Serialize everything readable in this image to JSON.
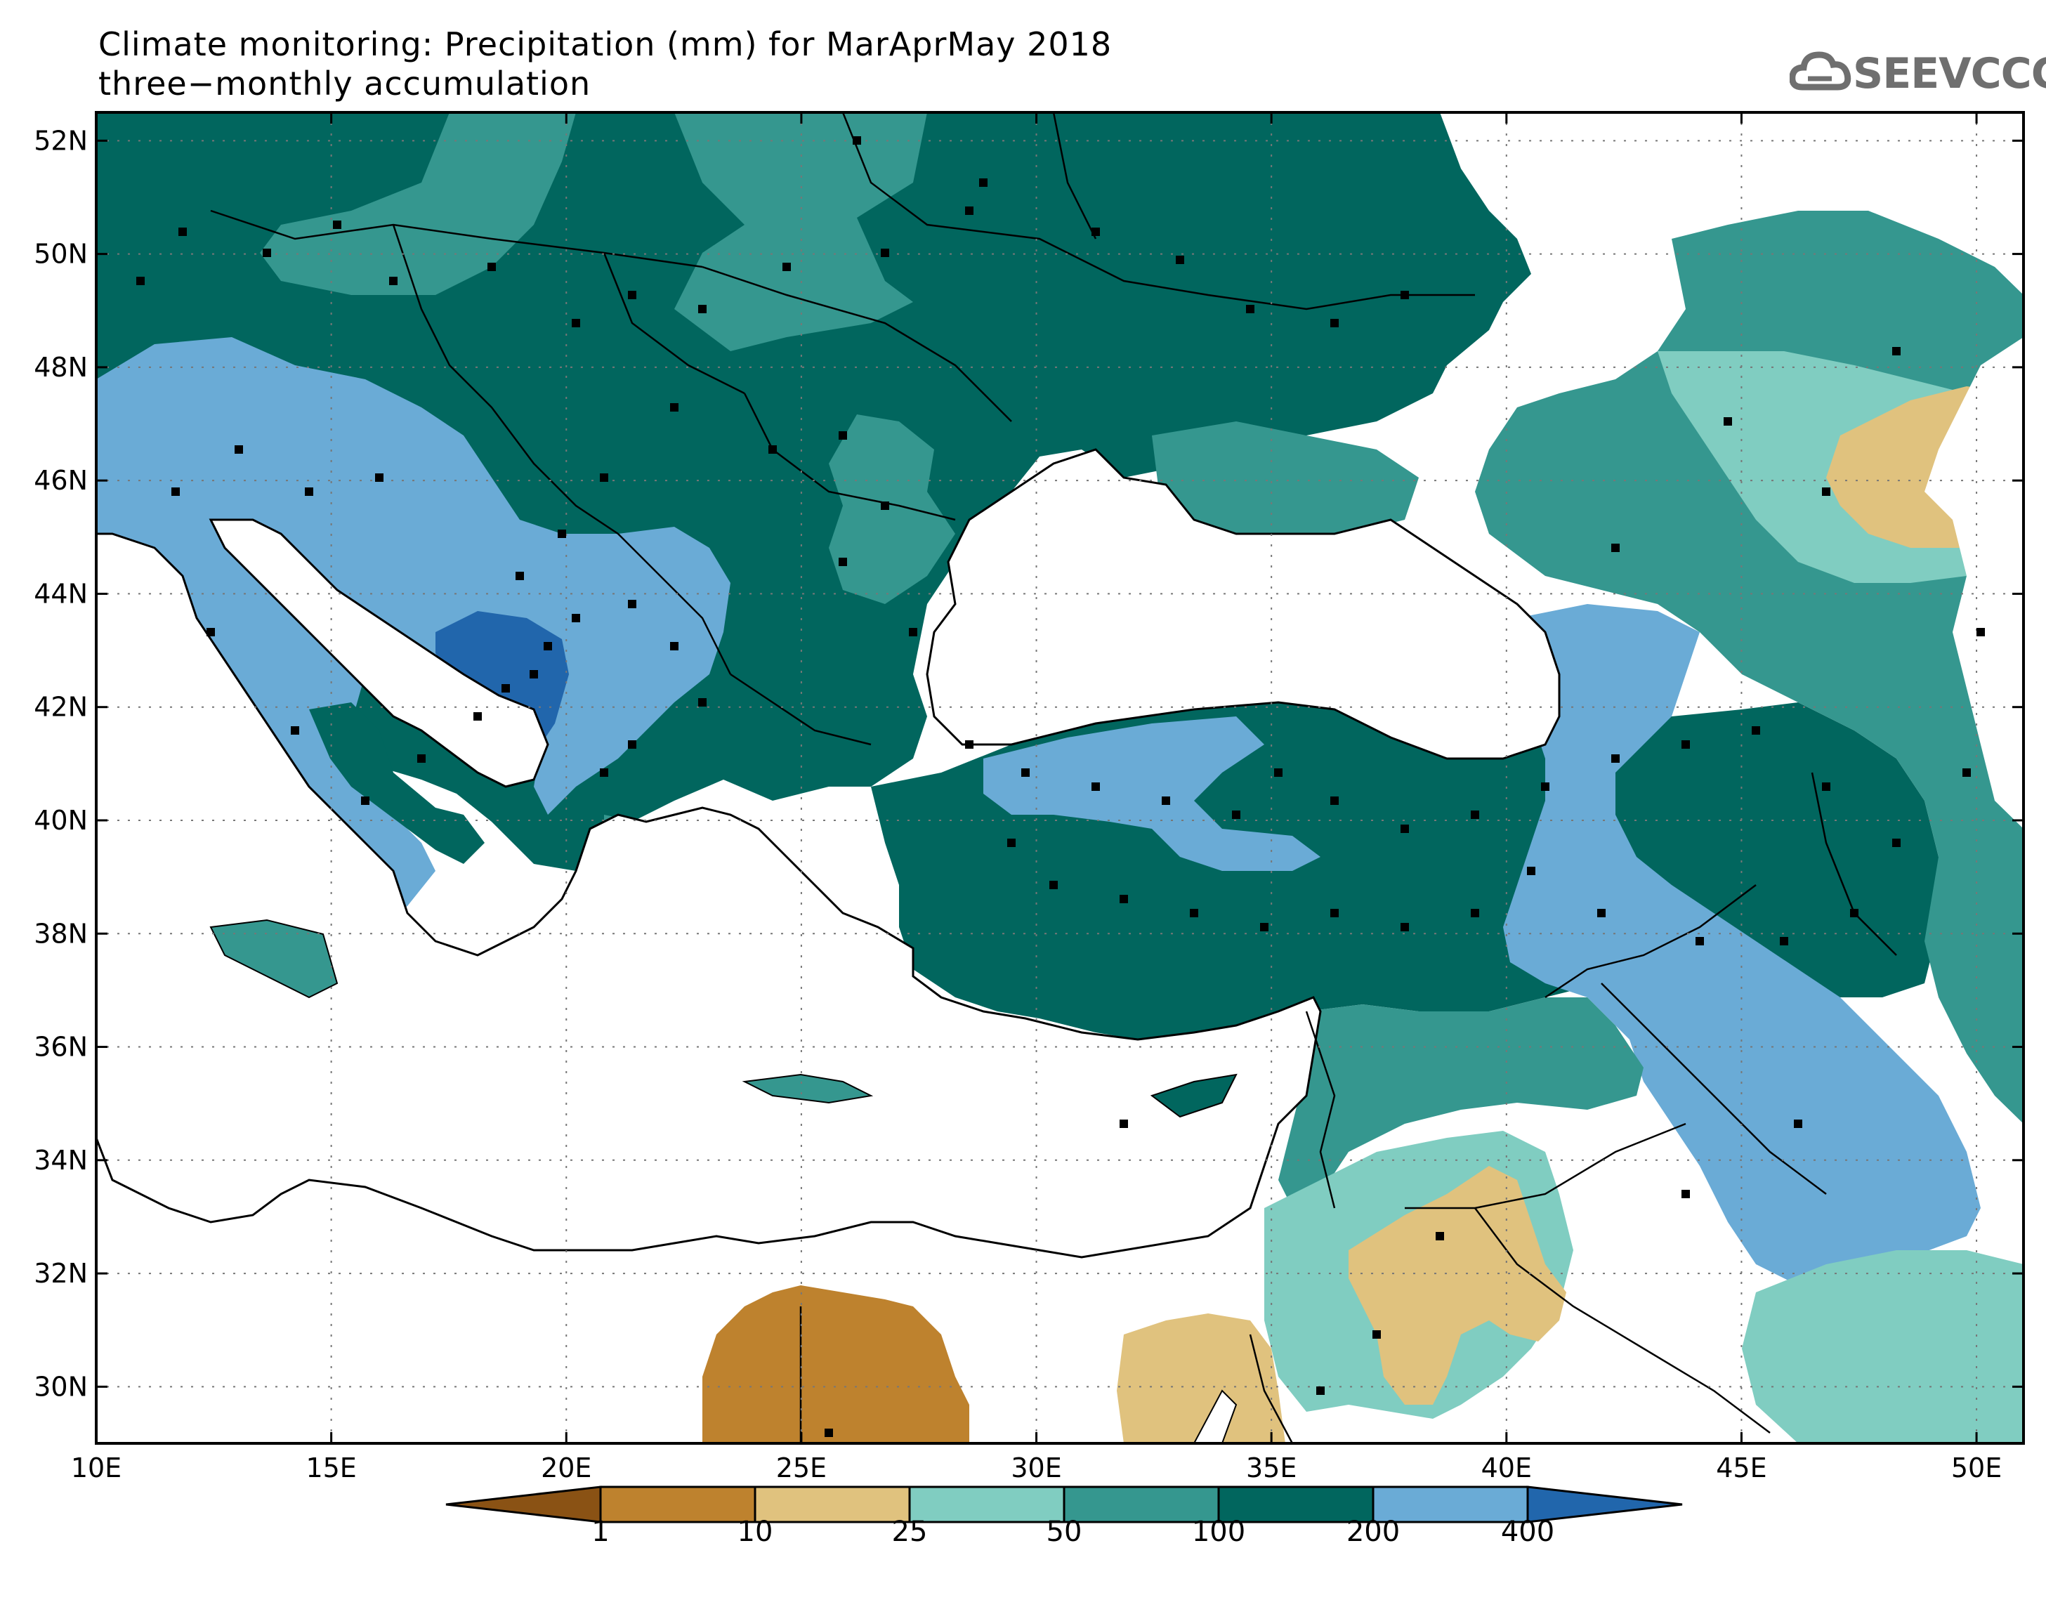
{
  "title_line1": "Climate monitoring: Precipitation (mm) for MarAprMay 2018",
  "title_line2": "three−monthly accumulation",
  "logo": {
    "text": "SEEVCCC",
    "icon": "cloud-icon"
  },
  "map_extent": {
    "lon": [
      10,
      51
    ],
    "lat": [
      29,
      52.5
    ]
  },
  "lon_ticks": [
    "10E",
    "15E",
    "20E",
    "25E",
    "30E",
    "35E",
    "40E",
    "45E",
    "50E"
  ],
  "lat_ticks": [
    "30N",
    "32N",
    "34N",
    "36N",
    "38N",
    "40N",
    "42N",
    "44N",
    "46N",
    "48N",
    "50N",
    "52N"
  ],
  "colorbar": {
    "labels": [
      "1",
      "10",
      "25",
      "50",
      "100",
      "200",
      "400"
    ],
    "colors": [
      "#8a5214",
      "#be822e",
      "#e0c27e",
      "#80cdc1",
      "#35978f",
      "#01665e",
      "#6aabd6",
      "#2166ac"
    ]
  },
  "colors": {
    "land_outline": "#000000",
    "sea": "#ffffff",
    "grid": "#777777"
  }
}
